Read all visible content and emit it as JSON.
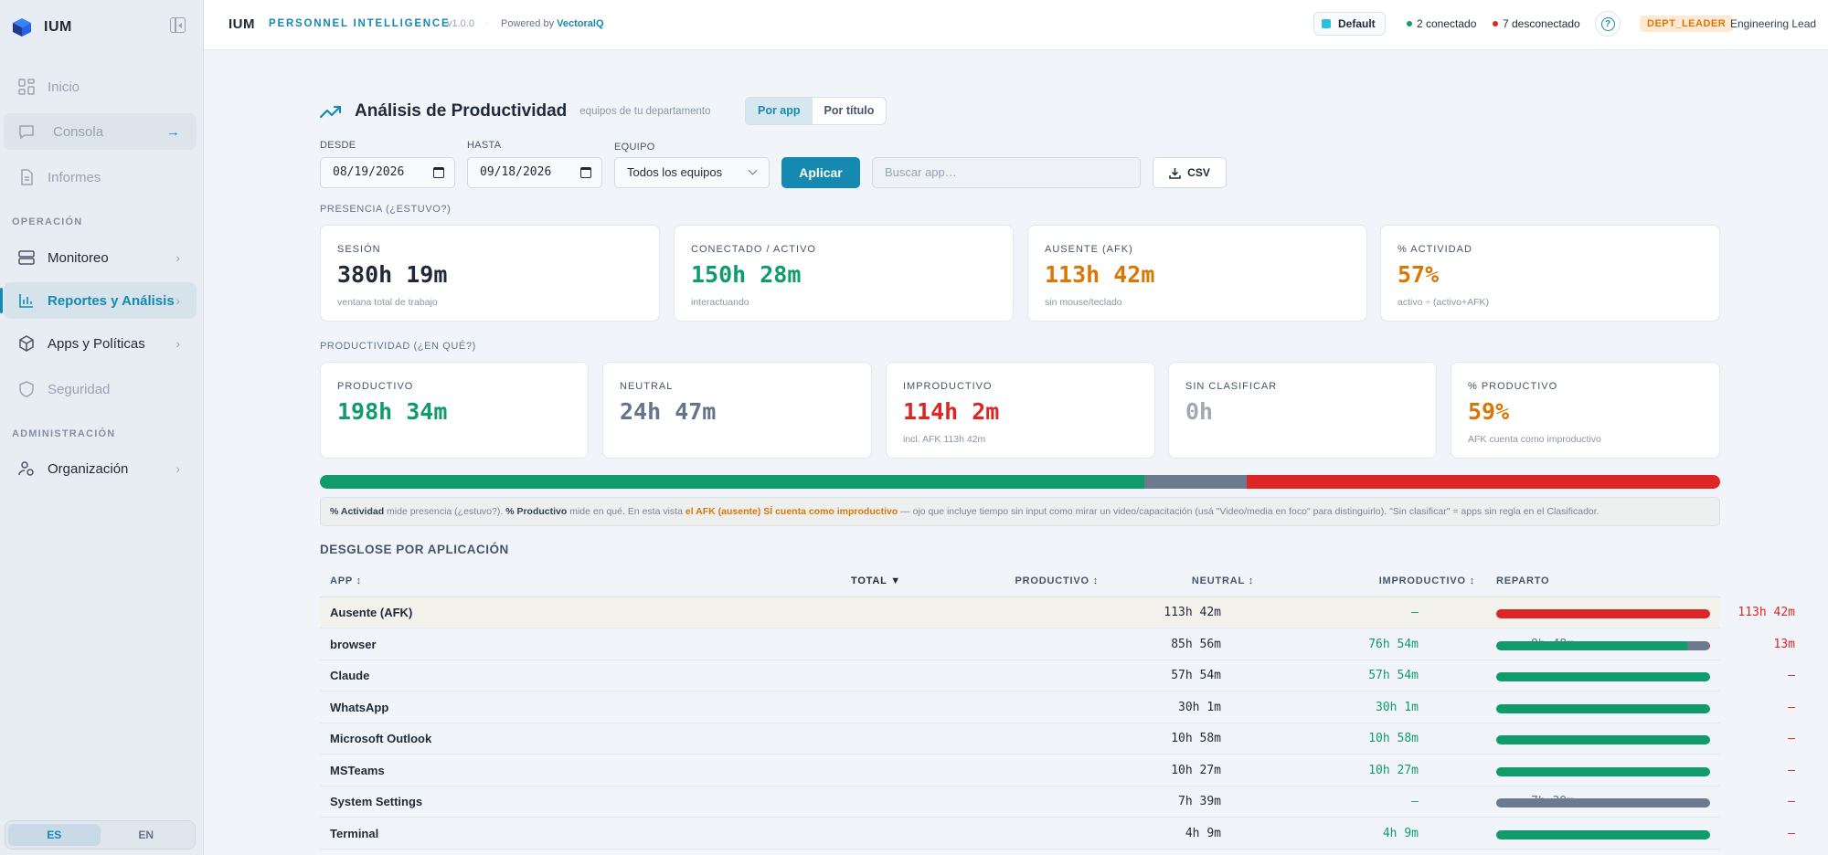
{
  "brand": {
    "name": "IUM"
  },
  "sidebar": {
    "items": [
      {
        "label": "Inicio"
      },
      {
        "label": "Consola"
      },
      {
        "label": "Informes"
      },
      {
        "label": "Monitoreo"
      },
      {
        "label": "Reportes y Análisis"
      },
      {
        "label": "Apps y Políticas"
      },
      {
        "label": "Seguridad"
      },
      {
        "label": "Organización"
      }
    ],
    "sections": {
      "operacion": "OPERACIÓN",
      "administracion": "ADMINISTRACIÓN"
    },
    "languages": [
      "ES",
      "EN"
    ]
  },
  "topbar": {
    "product": "IUM",
    "product_sub": "PERSONNEL INTELLIGENCE",
    "version": "v1.0.0",
    "separator": "·",
    "powered_by": "Powered by",
    "powered_brand": "VectoralQ",
    "workspace": "Default",
    "connected": "2 conectado",
    "disconnected": "7 desconectado",
    "help": "?",
    "role": "DEPT_LEADER",
    "user_title": "Engineering Lead"
  },
  "colors": {
    "accent": "#1689b0",
    "productive": "#0f9b6a",
    "neutral": "#64748b",
    "unproductive": "#dc2626",
    "afk": "#d97706"
  },
  "page": {
    "title": "Análisis de Productividad",
    "subtitle": "equipos de tu departamento",
    "view_tabs": [
      "Por app",
      "Por título"
    ]
  },
  "filters": {
    "from_label": "DESDE",
    "from_value": "08/19/2026",
    "to_label": "HASTA",
    "to_value": "09/18/2026",
    "team_label": "EQUIPO",
    "team_value": "Todos los equipos",
    "apply": "Aplicar",
    "search_placeholder": "Buscar app…",
    "csv": "CSV"
  },
  "presence": {
    "title": "PRESENCIA (¿ESTUVO?)",
    "cards": [
      {
        "label": "SESIÓN",
        "value": "380h 19m",
        "sub": "ventana total de trabajo"
      },
      {
        "label": "CONECTADO / ACTIVO",
        "value": "150h 28m",
        "sub": "interactuando"
      },
      {
        "label": "AUSENTE (AFK)",
        "value": "113h 42m",
        "sub": "sin mouse/teclado"
      },
      {
        "label": "% ACTIVIDAD",
        "value": "57%",
        "sub": "activo ÷ (activo+AFK)"
      }
    ]
  },
  "productivity": {
    "title": "PRODUCTIVIDAD (¿EN QUÉ?)",
    "cards": [
      {
        "label": "PRODUCTIVO",
        "value": "198h 34m",
        "sub": ""
      },
      {
        "label": "NEUTRAL",
        "value": "24h 47m",
        "sub": ""
      },
      {
        "label": "IMPRODUCTIVO",
        "value": "114h 2m",
        "sub": "incl. AFK 113h 42m"
      },
      {
        "label": "SIN CLASIFICAR",
        "value": "0h",
        "sub": ""
      },
      {
        "label": "% PRODUCTIVO",
        "value": "59%",
        "sub": "AFK cuenta como improductivo"
      }
    ],
    "mix_fractions": {
      "productive": 0.589,
      "neutral": 0.073,
      "unproductive": 0.338
    }
  },
  "note": {
    "b1": "% Actividad",
    "t1": " mide presencia (¿estuvo?). ",
    "b2": "% Productivo",
    "t2": " mide en qué. En esta vista ",
    "warn": "el AFK (ausente) SÍ cuenta como improductivo",
    "t3": " — ojo que incluye tiempo sin input como mirar un video/capacitación (usá \"Video/media en foco\" para distinguirlo). \"Sin clasificar\" = apps sin regla en el Clasificador."
  },
  "table": {
    "title": "DESGLOSE POR APLICACIÓN",
    "headers": {
      "app": "APP ↕",
      "total": "TOTAL ▼",
      "productive": "PRODUCTIVO ↕",
      "neutral": "NEUTRAL ↕",
      "unproductive": "IMPRODUCTIVO ↕",
      "split": "REPARTO"
    },
    "rows": [
      {
        "app": "Ausente (AFK)",
        "total": "113h 42m",
        "productive": "—",
        "neutral": "—",
        "unproductive": "113h 42m",
        "split": [
          0,
          0,
          1
        ]
      },
      {
        "app": "browser",
        "total": "85h 56m",
        "productive": "76h 54m",
        "neutral": "8h 48m",
        "unproductive": "13m",
        "split": [
          0.895,
          0.102,
          0.003
        ]
      },
      {
        "app": "Claude",
        "total": "57h 54m",
        "productive": "57h 54m",
        "neutral": "—",
        "unproductive": "—",
        "split": [
          1,
          0,
          0
        ]
      },
      {
        "app": "WhatsApp",
        "total": "30h 1m",
        "productive": "30h 1m",
        "neutral": "—",
        "unproductive": "—",
        "split": [
          1,
          0,
          0
        ]
      },
      {
        "app": "Microsoft Outlook",
        "total": "10h 58m",
        "productive": "10h 58m",
        "neutral": "—",
        "unproductive": "—",
        "split": [
          1,
          0,
          0
        ]
      },
      {
        "app": "MSTeams",
        "total": "10h 27m",
        "productive": "10h 27m",
        "neutral": "—",
        "unproductive": "—",
        "split": [
          1,
          0,
          0
        ]
      },
      {
        "app": "System Settings",
        "total": "7h 39m",
        "productive": "—",
        "neutral": "7h 39m",
        "unproductive": "—",
        "split": [
          0,
          1,
          0
        ]
      },
      {
        "app": "Terminal",
        "total": "4h 9m",
        "productive": "4h 9m",
        "neutral": "—",
        "unproductive": "—",
        "split": [
          1,
          0,
          0
        ]
      }
    ]
  }
}
